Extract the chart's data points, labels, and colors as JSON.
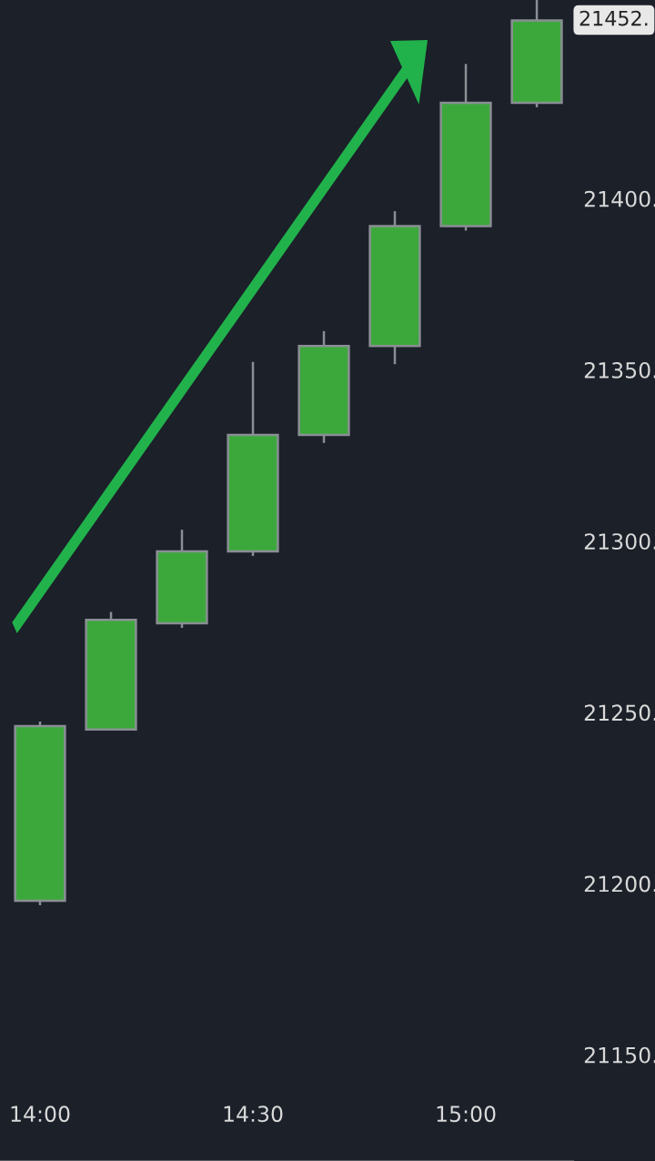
{
  "chart_data": {
    "type": "candlestick",
    "x": [
      14,
      14.1667,
      14.3333,
      14.5,
      14.6667,
      14.8333,
      15,
      15.1667
    ],
    "ohlc": [
      [
        21195,
        21247,
        21194,
        21246
      ],
      [
        21245,
        21279,
        21245,
        21277
      ],
      [
        21276,
        21303,
        21275,
        21297
      ],
      [
        21297,
        21352,
        21296,
        21331
      ],
      [
        21331,
        21361,
        21329,
        21357
      ],
      [
        21357,
        21396,
        21352,
        21392
      ],
      [
        21392,
        21439,
        21391,
        21428
      ],
      [
        21428,
        21458,
        21427,
        21452
      ]
    ],
    "color": "#3ca83c",
    "xlim": [
      13.906,
      15.252
    ],
    "ylim": [
      21119,
      21458
    ],
    "xticks": [
      {
        "value": 14,
        "label": "14:00"
      },
      {
        "value": 14.5,
        "label": "14:30"
      },
      {
        "value": 15,
        "label": "15:00"
      }
    ],
    "yticks": [
      {
        "value": 21150,
        "label": "21150."
      },
      {
        "value": 21200,
        "label": "21200."
      },
      {
        "value": 21250,
        "label": "21250."
      },
      {
        "value": 21300,
        "label": "21300."
      },
      {
        "value": 21350,
        "label": "21350."
      },
      {
        "value": 21400,
        "label": "21400."
      }
    ],
    "annotations": [
      "21452."
    ],
    "grid": false
  }
}
